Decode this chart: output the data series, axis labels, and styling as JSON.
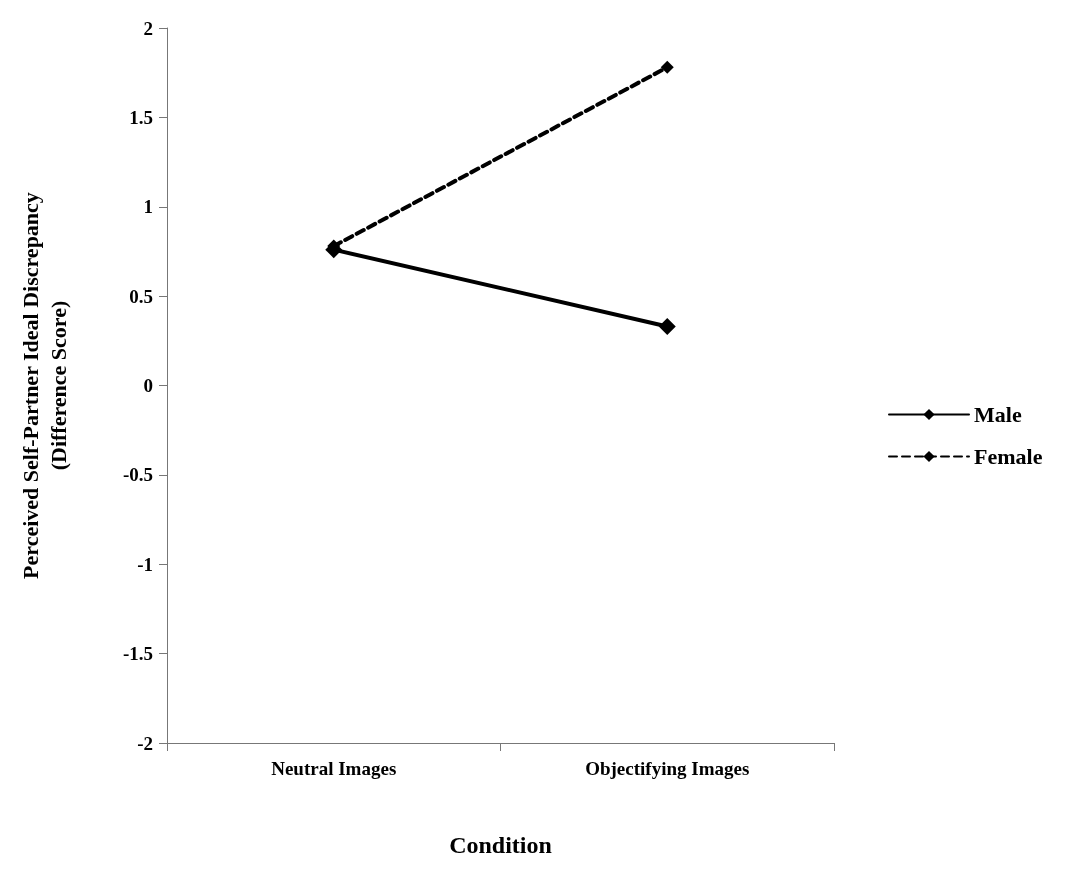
{
  "chart_data": {
    "type": "line",
    "xlabel": "Condition",
    "ylabel": "Perceived Self-Partner Ideal Discrepancy\n(Difference Score)",
    "categories": [
      "Neutral Images",
      "Objectifying Images"
    ],
    "series": [
      {
        "name": "Male",
        "color": "#000000",
        "values": [
          0.76,
          0.33
        ],
        "line_style": "solid"
      },
      {
        "name": "Female",
        "color": "#000000",
        "values": [
          0.78,
          1.78
        ],
        "line_style": "dashed"
      }
    ],
    "ylim": [
      -2,
      2
    ],
    "yticks": [
      -2,
      -1.5,
      -1,
      -0.5,
      0,
      0.5,
      1,
      1.5,
      2
    ],
    "grid": false,
    "legend": "right",
    "marker": "diamond"
  }
}
